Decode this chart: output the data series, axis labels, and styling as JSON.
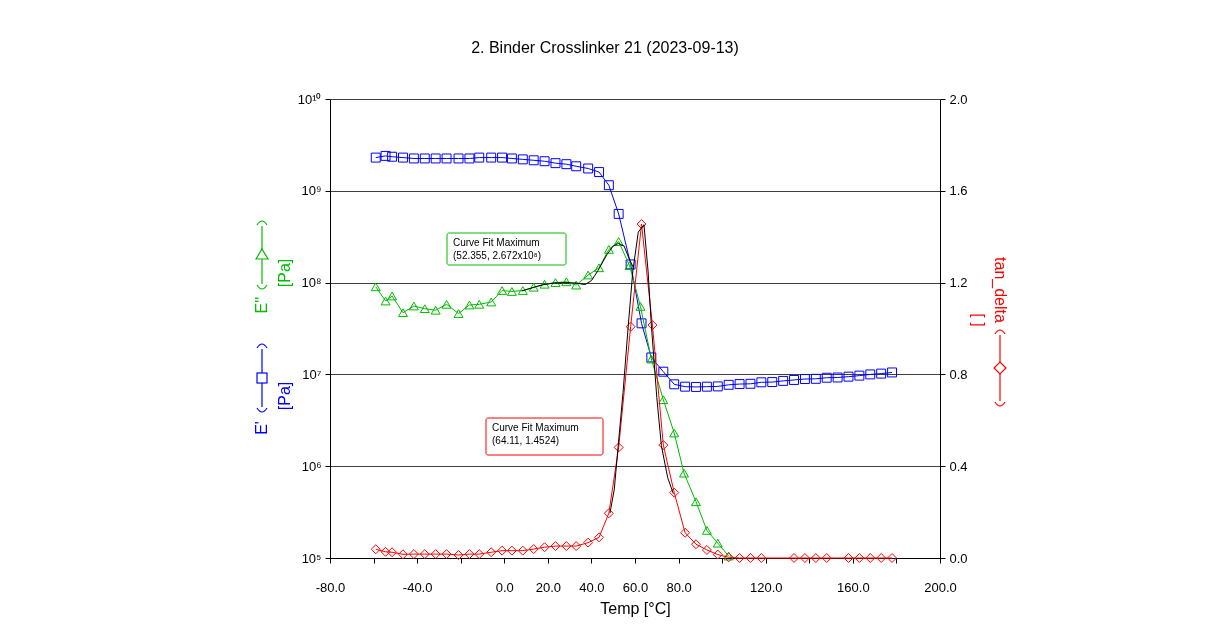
{
  "chart_data": {
    "type": "line",
    "title": "2. Binder Crosslinker 21 (2023-09-13)",
    "xlabel": "Temp [°C]",
    "ylabel": "[Pa]",
    "y2label": "[ ]",
    "log": "y",
    "grid": "y",
    "legend": "left",
    "line_style": "solid",
    "xlim": [
      -80,
      200
    ],
    "xticks": [
      {
        "value": -80,
        "label": "-80.0"
      },
      {
        "value": -60,
        "label": null
      },
      {
        "value": -40,
        "label": "-40.0"
      },
      {
        "value": -20,
        "label": null
      },
      {
        "value": 0,
        "label": "0.0"
      },
      {
        "value": 20,
        "label": "20.0"
      },
      {
        "value": 40,
        "label": "40.0"
      },
      {
        "value": 60,
        "label": "60.0"
      },
      {
        "value": 80,
        "label": "80.0"
      },
      {
        "value": 100,
        "label": null
      },
      {
        "value": 120,
        "label": "120.0"
      },
      {
        "value": 140,
        "label": null
      },
      {
        "value": 160,
        "label": "160.0"
      },
      {
        "value": 180,
        "label": null
      },
      {
        "value": 200,
        "label": "200.0"
      }
    ],
    "ylim": [
      100000,
      10000000000
    ],
    "yticks": [
      {
        "value": 100000,
        "label": "10⁵"
      },
      {
        "value": 1000000,
        "label": "10⁶"
      },
      {
        "value": 10000000,
        "label": "10⁷"
      },
      {
        "value": 100000000,
        "label": "10⁸"
      },
      {
        "value": 1000000000,
        "label": "10⁹"
      },
      {
        "value": 10000000000,
        "label": "10¹⁰"
      }
    ],
    "y2lim": [
      0,
      2.0
    ],
    "y2ticks": [
      {
        "value": 0,
        "label": "0.0"
      },
      {
        "value": 0.4,
        "label": "0.4"
      },
      {
        "value": 0.8,
        "label": "0.8"
      },
      {
        "value": 1.2,
        "label": "1.2"
      },
      {
        "value": 1.6,
        "label": "1.6"
      },
      {
        "value": 2.0,
        "label": "2.0"
      }
    ],
    "annotations": [
      "Curve Fit Maximum\n(52.355, 2.672x10⁸)",
      "Curve Fit Maximum\n(64.11, 1.4524)"
    ],
    "series": [
      {
        "name": "E'",
        "color": "#0000ff",
        "marker": "square",
        "x": [
          -59,
          -54.5,
          -51.5,
          -46.5,
          -41.5,
          -36.5,
          -31.5,
          -26.5,
          -21,
          -16,
          -11.5,
          -6,
          -1,
          3.5,
          8.5,
          13.5,
          18.5,
          23.5,
          28.5,
          33,
          38.5,
          43.5,
          48,
          52.5,
          58,
          63,
          67.5,
          73,
          78,
          83,
          88,
          93,
          98,
          103,
          108,
          113,
          118,
          123,
          128,
          133,
          138,
          143,
          148,
          153,
          158,
          163,
          168,
          173,
          178
        ],
        "values": [
          2300000000,
          2400000000,
          2350000000,
          2300000000,
          2250000000,
          2250000000,
          2250000000,
          2250000000,
          2250000000,
          2250000000,
          2300000000,
          2300000000,
          2300000000,
          2250000000,
          2200000000,
          2150000000,
          2100000000,
          2000000000,
          1950000000,
          1850000000,
          1750000000,
          1600000000,
          1150000000,
          560000000,
          158000000,
          36000000,
          15300000,
          10700000,
          7800000,
          7350000,
          7300000,
          7350000,
          7400000,
          7700000,
          7850000,
          7900000,
          8200000,
          8250000,
          8500000,
          8700000,
          8900000,
          8950000,
          9200000,
          9250000,
          9450000,
          9700000,
          10000000,
          10200000,
          10500000
        ]
      },
      {
        "name": "E''",
        "color": "#00bb00",
        "marker": "triangle",
        "x": [
          -59,
          -54.5,
          -51.5,
          -46.5,
          -41.5,
          -36.5,
          -31.5,
          -26.5,
          -21,
          -16,
          -11.5,
          -6,
          -1,
          3.5,
          8.5,
          13.5,
          18.5,
          23.5,
          28.5,
          33,
          38.5,
          43.5,
          48,
          52.5,
          57.5,
          62.5,
          67.5,
          73,
          78,
          82.5,
          88,
          93,
          98,
          103
        ],
        "values": [
          90000000,
          63000000,
          71500000,
          47000000,
          55600000,
          52000000,
          50000000,
          58000000,
          46000000,
          57000000,
          58000000,
          61500000,
          82000000,
          80000000,
          82000000,
          89000000,
          96000000,
          100000000,
          102000000,
          94000000,
          121000000,
          145000000,
          230000000,
          280000000,
          153000000,
          55000000,
          14700000,
          5300000,
          2300000,
          840000,
          410000,
          200000,
          145000,
          105000
        ]
      },
      {
        "name": "tan_delta",
        "color": "#ff0000",
        "marker": "diamond",
        "axis": "y2",
        "x": [
          -59,
          -54.5,
          -51.5,
          -46.5,
          -41.5,
          -36.5,
          -31.5,
          -26.5,
          -21,
          -16,
          -11.5,
          -6,
          -1,
          3.5,
          8.5,
          13.5,
          18.5,
          23.5,
          28.5,
          33,
          38.5,
          43.5,
          48,
          52.5,
          58,
          63,
          68,
          73,
          78,
          83,
          88,
          93,
          98,
          103,
          108,
          113,
          118,
          133,
          138,
          143,
          148,
          158,
          163,
          168,
          173,
          178
        ],
        "values": [
          0.038,
          0.027,
          0.025,
          0.016,
          0.017,
          0.017,
          0.017,
          0.017,
          0.013,
          0.017,
          0.017,
          0.025,
          0.032,
          0.032,
          0.032,
          0.039,
          0.047,
          0.052,
          0.052,
          0.052,
          0.067,
          0.09,
          0.195,
          0.482,
          1.008,
          1.455,
          1.015,
          0.492,
          0.285,
          0.11,
          0.06,
          0.035,
          0.015,
          0.003,
          0,
          0,
          0,
          0,
          0,
          0,
          0,
          0,
          0,
          0,
          0,
          0
        ]
      },
      {
        "color": "#000000",
        "marker": "none",
        "x": [
          8,
          13,
          18,
          23,
          28,
          33,
          37,
          40,
          43,
          47,
          50,
          52.355,
          55,
          57,
          59
        ],
        "values": [
          81000000,
          88000000,
          95000000,
          99000000,
          100000000,
          99000000,
          95000000,
          105000000,
          135000000,
          200000000,
          250000000,
          267200000,
          250000000,
          190000000,
          150000000
        ]
      },
      {
        "color": "#000000",
        "marker": "none",
        "axis": "y2",
        "x": [
          48.5,
          50.5,
          52.2,
          54.5,
          56.8,
          59,
          61.5,
          64.11,
          66,
          67.5,
          70,
          72.1,
          75,
          77.6
        ],
        "values": [
          0.195,
          0.3,
          0.48,
          0.72,
          1.0,
          1.25,
          1.42,
          1.4524,
          1.25,
          1.015,
          0.7,
          0.49,
          0.35,
          0.28
        ]
      }
    ]
  }
}
